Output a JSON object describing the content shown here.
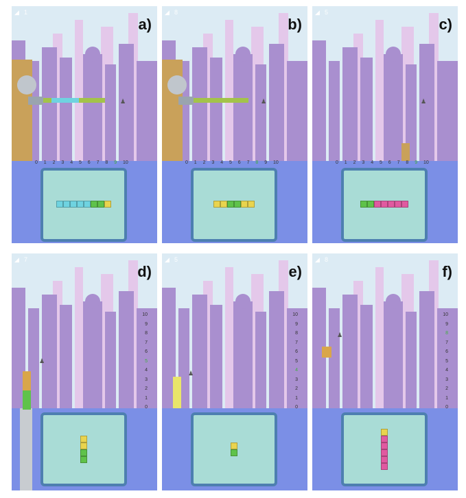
{
  "colors": {
    "sky": "#dcebf4",
    "skyline_back": "#e4c8ea",
    "skyline_front": "#a98fcf",
    "ground": "#7b8fe6",
    "tray_frame": "#4d7fb0",
    "tray_fill": "#a9dcd6",
    "cyan_block": "#6fd3e0",
    "green_block": "#5fc24a",
    "yellow_block": "#e9d44e",
    "pink_block": "#e05aa0",
    "marker_green": "#3fae3f"
  },
  "panels": [
    {
      "label": "a)",
      "hud_icon": "robot-head-icon",
      "hud_count": "1",
      "axis": "horizontal",
      "ticks": [
        "0",
        "1",
        "2",
        "3",
        "4",
        "5",
        "6",
        "7",
        "8",
        "9",
        "10"
      ],
      "marked_tick": "9",
      "tray_blocks": [
        "cyan",
        "cyan",
        "cyan",
        "cyan",
        "cyan",
        "green",
        "green",
        "yellow"
      ]
    },
    {
      "label": "b)",
      "hud_icon": "robot-head-icon",
      "hud_count": "8",
      "axis": "horizontal",
      "ticks": [
        "0",
        "1",
        "2",
        "3",
        "4",
        "5",
        "6",
        "7",
        "8",
        "9",
        "10"
      ],
      "marked_tick": "8",
      "tray_blocks": [
        "yellow",
        "yellow",
        "green",
        "green",
        "yellow",
        "yellow"
      ]
    },
    {
      "label": "c)",
      "hud_icon": "robot-head-icon",
      "hud_count": "5",
      "axis": "horizontal",
      "ticks": [
        "0",
        "1",
        "2",
        "3",
        "4",
        "5",
        "6",
        "7",
        "8",
        "9",
        "10"
      ],
      "marked_tick": "9",
      "tray_blocks": [
        "green",
        "green",
        "pink",
        "pink",
        "pink",
        "pink",
        "pink"
      ]
    },
    {
      "label": "d)",
      "hud_icon": "robot-head-icon",
      "hud_count": "7",
      "axis": "vertical",
      "ticks": [
        "10",
        "9",
        "8",
        "7",
        "6",
        "5",
        "4",
        "3",
        "2",
        "1",
        "0"
      ],
      "marked_tick": "5",
      "tray_blocks": [
        "yellow",
        "yellow",
        "green",
        "green"
      ]
    },
    {
      "label": "e)",
      "hud_icon": "robot-head-icon",
      "hud_count": "5",
      "axis": "vertical",
      "ticks": [
        "10",
        "9",
        "8",
        "7",
        "6",
        "5",
        "4",
        "3",
        "2",
        "1",
        "0"
      ],
      "marked_tick": "4",
      "tray_blocks": [
        "yellow",
        "green"
      ]
    },
    {
      "label": "f)",
      "hud_icon": "robot-head-icon",
      "hud_count": "8",
      "axis": "vertical",
      "ticks": [
        "10",
        "9",
        "8",
        "7",
        "6",
        "5",
        "4",
        "3",
        "2",
        "1",
        "0"
      ],
      "marked_tick": "8",
      "tray_blocks": [
        "yellow",
        "pink",
        "pink",
        "pink",
        "pink",
        "pink"
      ]
    }
  ]
}
